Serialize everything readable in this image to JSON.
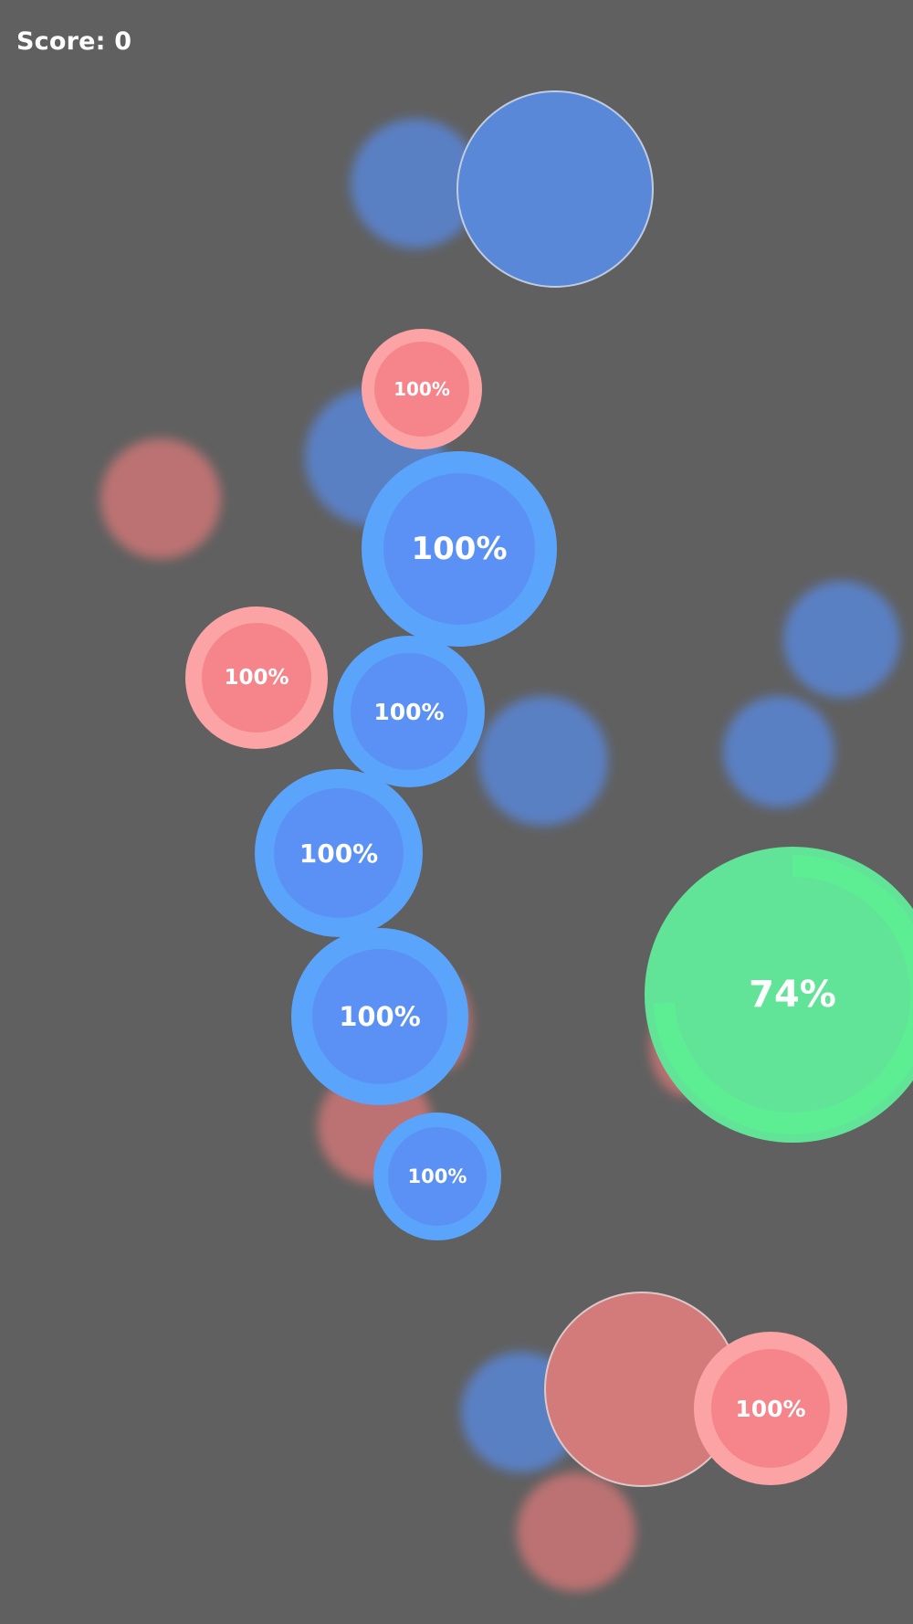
{
  "hud": {
    "score_label": "Score: 0"
  },
  "colors": {
    "background": "#606060",
    "blue_bubble": "#5b91f5",
    "red_bubble": "#f5858a",
    "green_bubble": "#62e498"
  },
  "bubbles": {
    "red_top": {
      "value": "100%"
    },
    "blue_1": {
      "value": "100%"
    },
    "red_left": {
      "value": "100%"
    },
    "blue_2": {
      "value": "100%"
    },
    "blue_3": {
      "value": "100%"
    },
    "blue_4": {
      "value": "100%"
    },
    "blue_5": {
      "value": "100%"
    },
    "red_bottom": {
      "value": "100%"
    },
    "green": {
      "value": "74%",
      "progress": 0.74
    }
  }
}
